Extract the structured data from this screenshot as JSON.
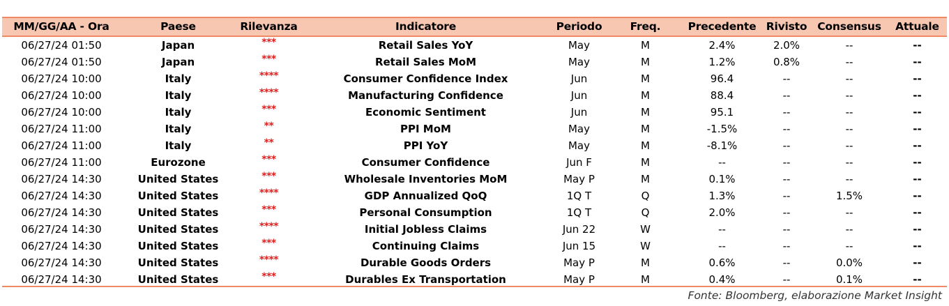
{
  "table": {
    "headers": {
      "date": "MM/GG/AA - Ora",
      "country": "Paese",
      "relevance": "Rilevanza",
      "indicator": "Indicatore",
      "period": "Periodo",
      "freq": "Freq.",
      "previous": "Precedente",
      "revised": "Rivisto",
      "consensus": "Consensus",
      "actual": "Attuale"
    },
    "rows": [
      {
        "date": "06/27/24 01:50",
        "country": "Japan",
        "relevance": "***",
        "indicator": "Retail Sales YoY",
        "period": "May",
        "freq": "M",
        "previous": "2.4%",
        "revised": "2.0%",
        "consensus": "--",
        "actual": "--"
      },
      {
        "date": "06/27/24 01:50",
        "country": "Japan",
        "relevance": "***",
        "indicator": "Retail Sales MoM",
        "period": "May",
        "freq": "M",
        "previous": "1.2%",
        "revised": "0.8%",
        "consensus": "--",
        "actual": "--"
      },
      {
        "date": "06/27/24 10:00",
        "country": "Italy",
        "relevance": "****",
        "indicator": "Consumer Confidence Index",
        "period": "Jun",
        "freq": "M",
        "previous": "96.4",
        "revised": "--",
        "consensus": "--",
        "actual": "--"
      },
      {
        "date": "06/27/24 10:00",
        "country": "Italy",
        "relevance": "****",
        "indicator": "Manufacturing Confidence",
        "period": "Jun",
        "freq": "M",
        "previous": "88.4",
        "revised": "--",
        "consensus": "--",
        "actual": "--"
      },
      {
        "date": "06/27/24 10:00",
        "country": "Italy",
        "relevance": "***",
        "indicator": "Economic Sentiment",
        "period": "Jun",
        "freq": "M",
        "previous": "95.1",
        "revised": "--",
        "consensus": "--",
        "actual": "--"
      },
      {
        "date": "06/27/24 11:00",
        "country": "Italy",
        "relevance": "**",
        "indicator": "PPI MoM",
        "period": "May",
        "freq": "M",
        "previous": "-1.5%",
        "revised": "--",
        "consensus": "--",
        "actual": "--"
      },
      {
        "date": "06/27/24 11:00",
        "country": "Italy",
        "relevance": "**",
        "indicator": "PPI YoY",
        "period": "May",
        "freq": "M",
        "previous": "-8.1%",
        "revised": "--",
        "consensus": "--",
        "actual": "--"
      },
      {
        "date": "06/27/24 11:00",
        "country": "Eurozone",
        "relevance": "***",
        "indicator": "Consumer Confidence",
        "period": "Jun F",
        "freq": "M",
        "previous": "--",
        "revised": "--",
        "consensus": "--",
        "actual": "--"
      },
      {
        "date": "06/27/24 14:30",
        "country": "United States",
        "relevance": "***",
        "indicator": "Wholesale Inventories MoM",
        "period": "May P",
        "freq": "M",
        "previous": "0.1%",
        "revised": "--",
        "consensus": "--",
        "actual": "--"
      },
      {
        "date": "06/27/24 14:30",
        "country": "United States",
        "relevance": "****",
        "indicator": "GDP Annualized QoQ",
        "period": "1Q T",
        "freq": "Q",
        "previous": "1.3%",
        "revised": "--",
        "consensus": "1.5%",
        "actual": "--"
      },
      {
        "date": "06/27/24 14:30",
        "country": "United States",
        "relevance": "***",
        "indicator": "Personal Consumption",
        "period": "1Q T",
        "freq": "Q",
        "previous": "2.0%",
        "revised": "--",
        "consensus": "--",
        "actual": "--"
      },
      {
        "date": "06/27/24 14:30",
        "country": "United States",
        "relevance": "****",
        "indicator": "Initial Jobless Claims",
        "period": "Jun 22",
        "freq": "W",
        "previous": "--",
        "revised": "--",
        "consensus": "--",
        "actual": "--"
      },
      {
        "date": "06/27/24 14:30",
        "country": "United States",
        "relevance": "***",
        "indicator": "Continuing Claims",
        "period": "Jun 15",
        "freq": "W",
        "previous": "--",
        "revised": "--",
        "consensus": "--",
        "actual": "--"
      },
      {
        "date": "06/27/24 14:30",
        "country": "United States",
        "relevance": "****",
        "indicator": "Durable Goods Orders",
        "period": "May P",
        "freq": "M",
        "previous": "0.6%",
        "revised": "--",
        "consensus": "0.0%",
        "actual": "--"
      },
      {
        "date": "06/27/24 14:30",
        "country": "United States",
        "relevance": "***",
        "indicator": "Durables Ex Transportation",
        "period": "May P",
        "freq": "M",
        "previous": "0.4%",
        "revised": "--",
        "consensus": "0.1%",
        "actual": "--"
      }
    ]
  },
  "footer": {
    "source": "Fonte: Bloomberg, elaborazione Market Insight"
  },
  "colors": {
    "rule": "#ef8a65",
    "header_bg": "#f7c7b2",
    "relevance_stars": "#e02020"
  }
}
